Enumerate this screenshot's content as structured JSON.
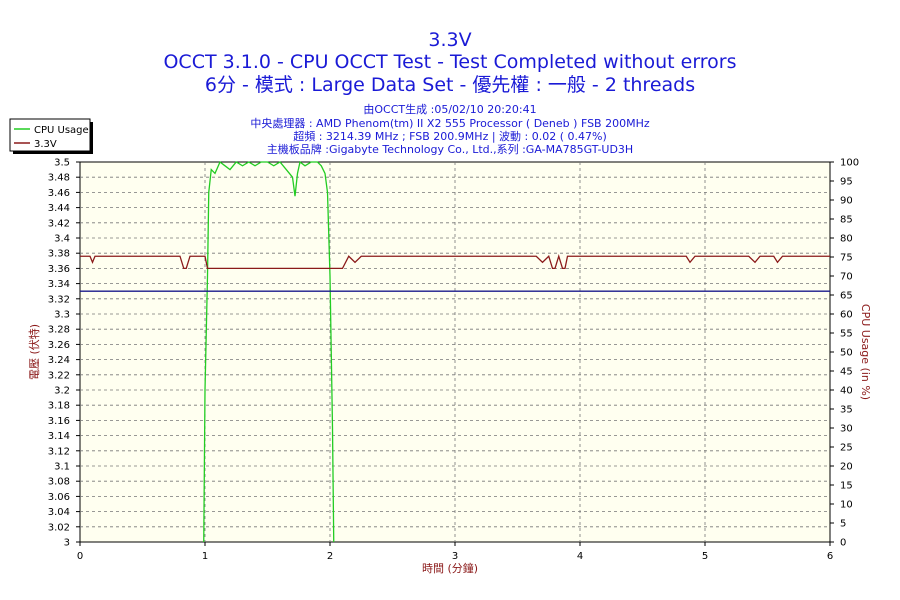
{
  "chart_data": {
    "type": "line",
    "title": "3.3V",
    "subtitle": "OCCT 3.1.0 - CPU OCCT Test - Test Completed without errors",
    "subtitle2": "6分 - 模式 : Large Data Set - 優先權 : 一般 - 2 threads",
    "info_lines": [
      "由OCCT生成 :05/02/10 20:20:41",
      "中央處理器 : AMD Phenom(tm) II X2 555 Processor ( Deneb ) FSB 200MHz",
      "超頻 : 3214.39 MHz ; FSB 200.9MHz | 波動 : 0.02 ( 0.47%)",
      "主機板品牌 :Gigabyte Technology Co., Ltd.,系列 :GA-MA785GT-UD3H"
    ],
    "xlabel": "時間 (分鐘)",
    "ylabel": "電壓 (伏特)",
    "y2label": "CPU Usage (in %)",
    "xlim": [
      0,
      6
    ],
    "ylim": [
      3,
      3.5
    ],
    "y2lim": [
      0,
      100
    ],
    "x_ticks": [
      "0",
      "1",
      "2",
      "3",
      "4",
      "5",
      "6"
    ],
    "y_ticks": [
      "3.5",
      "3.48",
      "3.46",
      "3.44",
      "3.42",
      "3.4",
      "3.38",
      "3.36",
      "3.34",
      "3.32",
      "3.3",
      "3.28",
      "3.26",
      "3.24",
      "3.22",
      "3.2",
      "3.18",
      "3.16",
      "3.14",
      "3.12",
      "3.1",
      "3.08",
      "3.06",
      "3.04",
      "3.02",
      "3"
    ],
    "y2_ticks": [
      "100",
      "95",
      "90",
      "85",
      "80",
      "75",
      "70",
      "65",
      "60",
      "55",
      "50",
      "45",
      "40",
      "35",
      "30",
      "25",
      "20",
      "15",
      "10",
      "5",
      "0"
    ],
    "grid": true,
    "legend_position": "top-left",
    "series": [
      {
        "name": "CPU Usage",
        "axis": "right",
        "color": "#22cc22",
        "x": [
          0.99,
          1.0,
          1.02,
          1.03,
          1.05,
          1.08,
          1.12,
          1.16,
          1.2,
          1.25,
          1.3,
          1.35,
          1.4,
          1.45,
          1.5,
          1.55,
          1.6,
          1.65,
          1.7,
          1.72,
          1.74,
          1.76,
          1.8,
          1.85,
          1.9,
          1.93,
          1.96,
          1.98,
          2.0,
          2.02,
          2.03
        ],
        "values": [
          0,
          40,
          70,
          92,
          98,
          97,
          100,
          99,
          98,
          100,
          99,
          100,
          99,
          100,
          100,
          99,
          100,
          98,
          96,
          91,
          97,
          100,
          99,
          100,
          100,
          99,
          97,
          92,
          70,
          30,
          0
        ]
      },
      {
        "name": "3.3V",
        "axis": "left",
        "color": "#8b1a1a",
        "x": [
          0,
          0.08,
          0.1,
          0.12,
          0.2,
          0.8,
          0.83,
          0.85,
          0.88,
          1.0,
          1.02,
          2.05,
          2.1,
          2.15,
          2.2,
          2.25,
          3.65,
          3.7,
          3.75,
          3.78,
          3.8,
          3.83,
          3.86,
          3.88,
          3.9,
          3.93,
          4.85,
          4.88,
          4.92,
          5.35,
          5.4,
          5.44,
          5.55,
          5.58,
          5.62,
          6.0
        ],
        "values": [
          3.376,
          3.376,
          3.368,
          3.376,
          3.376,
          3.376,
          3.36,
          3.36,
          3.376,
          3.376,
          3.36,
          3.36,
          3.36,
          3.376,
          3.368,
          3.376,
          3.376,
          3.368,
          3.376,
          3.36,
          3.36,
          3.376,
          3.36,
          3.36,
          3.376,
          3.376,
          3.376,
          3.368,
          3.376,
          3.376,
          3.368,
          3.376,
          3.376,
          3.368,
          3.376,
          3.376
        ]
      },
      {
        "name": "",
        "axis": "left",
        "color": "#1a1a8b",
        "x": [
          0,
          6
        ],
        "values": [
          3.33,
          3.33
        ]
      }
    ]
  }
}
